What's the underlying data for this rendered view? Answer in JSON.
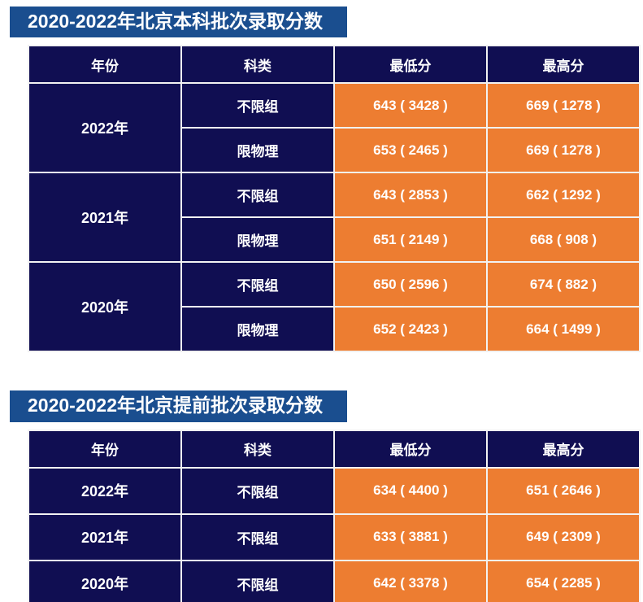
{
  "colors": {
    "title_bar_blue": "#1a4e8f",
    "cell_navy": "#100e52",
    "cell_orange": "#ed7d31",
    "text_white": "#ffffff",
    "grid_border": "#f2f2f2",
    "page_background": "#ffffff"
  },
  "chart_data": [
    {
      "type": "table",
      "title": "2020-2022年北京本科批次录取分数",
      "columns": [
        "年份",
        "科类",
        "最低分",
        "最高分"
      ],
      "rows": [
        [
          "2022年",
          "不限组",
          "643 ( 3428 )",
          "669 ( 1278 )"
        ],
        [
          "2022年",
          "限物理",
          "653 ( 2465 )",
          "669 ( 1278 )"
        ],
        [
          "2021年",
          "不限组",
          "643 ( 2853 )",
          "662 ( 1292 )"
        ],
        [
          "2021年",
          "限物理",
          "651 ( 2149 )",
          "668 ( 908 )"
        ],
        [
          "2020年",
          "不限组",
          "650 ( 2596 )",
          "674 ( 882 )"
        ],
        [
          "2020年",
          "限物理",
          "652 ( 2423 )",
          "664 ( 1499 )"
        ]
      ],
      "layout_hints": {
        "year_cells_merged_per_two_rows": true,
        "navy_columns": [
          "年份",
          "科类"
        ],
        "orange_columns": [
          "最低分",
          "最高分"
        ]
      }
    },
    {
      "type": "table",
      "title": "2020-2022年北京提前批次录取分数",
      "columns": [
        "年份",
        "科类",
        "最低分",
        "最高分"
      ],
      "rows": [
        [
          "2022年",
          "不限组",
          "634 ( 4400 )",
          "651 ( 2646 )"
        ],
        [
          "2021年",
          "不限组",
          "633 ( 3881 )",
          "649 ( 2309 )"
        ],
        [
          "2020年",
          "不限组",
          "642 ( 3378 )",
          "654 ( 2285 )"
        ]
      ],
      "layout_hints": {
        "navy_columns": [
          "年份",
          "科类"
        ],
        "orange_columns": [
          "最低分",
          "最高分"
        ]
      }
    }
  ]
}
